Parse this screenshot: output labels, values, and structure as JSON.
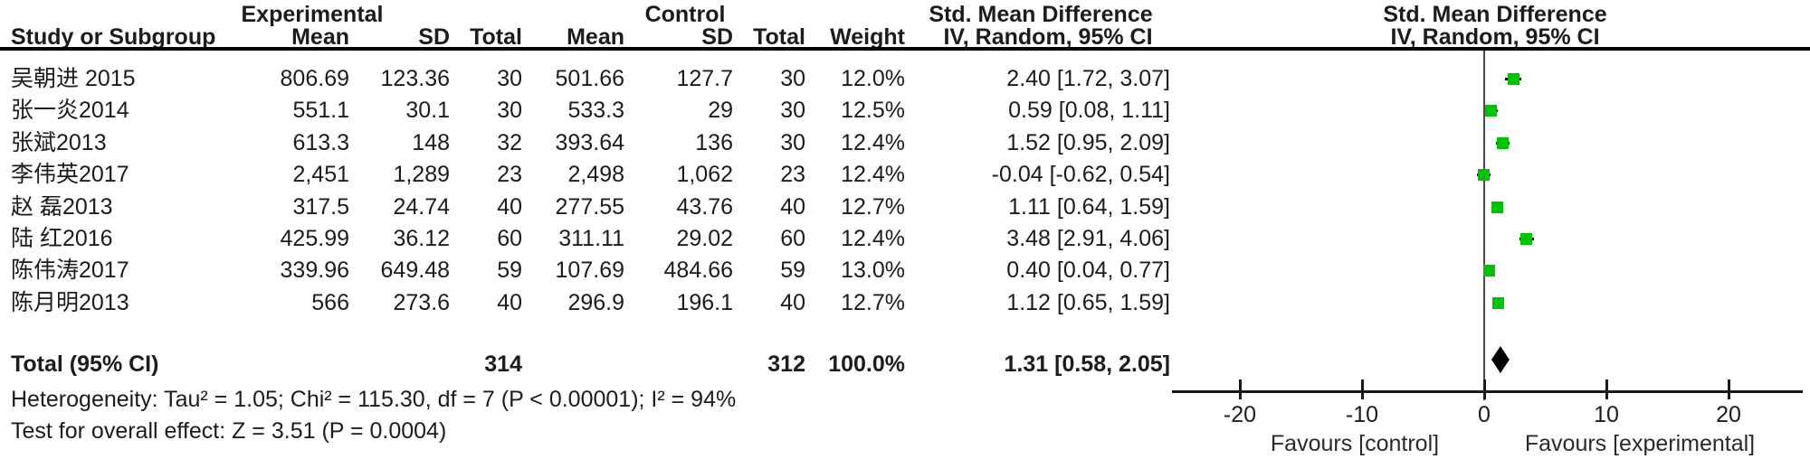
{
  "headers": {
    "group_experimental": "Experimental",
    "group_control": "Control",
    "smd_numeric": "Std. Mean Difference",
    "smd_plot": "Std. Mean Difference",
    "study": "Study or Subgroup",
    "mean": "Mean",
    "sd": "SD",
    "total": "Total",
    "weight": "Weight",
    "ci_method_numeric": "IV, Random, 95% CI",
    "ci_method_plot": "IV, Random, 95% CI"
  },
  "total": {
    "label": "Total (95% CI)",
    "exp_total": "314",
    "ctrl_total": "312",
    "weight": "100.0%",
    "ci_text": "1.31 [0.58, 2.05]",
    "smd": 1.31,
    "ci_lo": 0.58,
    "ci_hi": 2.05
  },
  "footer": {
    "heterogeneity": "Heterogeneity: Tau² = 1.05; Chi² = 115.30, df = 7 (P < 0.00001); I² = 94%",
    "overall_effect": "Test for overall effect: Z = 3.51 (P = 0.0004)"
  },
  "axis": {
    "ticks": [
      -20,
      -10,
      0,
      10,
      20
    ],
    "favours_left": "Favours [control]",
    "favours_right": "Favours [experimental]"
  },
  "colors": {
    "marker_green": "#00c300",
    "diamond_black": "#000000",
    "text": "#1c1c1c"
  },
  "chart_data": {
    "type": "scatter",
    "subtype": "forest-plot",
    "title": "Std. Mean Difference, IV, Random, 95% CI",
    "xlabel_left": "Favours [control]",
    "xlabel_right": "Favours [experimental]",
    "x_ticks": [
      -20,
      -10,
      0,
      10,
      20
    ],
    "xlim": [
      -25.5,
      26
    ],
    "studies": [
      {
        "name": "吴朝进 2015",
        "exp_mean": "806.69",
        "exp_sd": "123.36",
        "exp_total": "30",
        "ctrl_mean": "501.66",
        "ctrl_sd": "127.7",
        "ctrl_total": "30",
        "weight": "12.0%",
        "ci_text": "2.40 [1.72, 3.07]",
        "smd": 2.4,
        "ci_lo": 1.72,
        "ci_hi": 3.07
      },
      {
        "name": "张一炎2014",
        "exp_mean": "551.1",
        "exp_sd": "30.1",
        "exp_total": "30",
        "ctrl_mean": "533.3",
        "ctrl_sd": "29",
        "ctrl_total": "30",
        "weight": "12.5%",
        "ci_text": "0.59 [0.08, 1.11]",
        "smd": 0.59,
        "ci_lo": 0.08,
        "ci_hi": 1.11
      },
      {
        "name": "张斌2013",
        "exp_mean": "613.3",
        "exp_sd": "148",
        "exp_total": "32",
        "ctrl_mean": "393.64",
        "ctrl_sd": "136",
        "ctrl_total": "30",
        "weight": "12.4%",
        "ci_text": "1.52 [0.95, 2.09]",
        "smd": 1.52,
        "ci_lo": 0.95,
        "ci_hi": 2.09
      },
      {
        "name": "李伟英2017",
        "exp_mean": "2,451",
        "exp_sd": "1,289",
        "exp_total": "23",
        "ctrl_mean": "2,498",
        "ctrl_sd": "1,062",
        "ctrl_total": "23",
        "weight": "12.4%",
        "ci_text": "-0.04 [-0.62, 0.54]",
        "smd": -0.04,
        "ci_lo": -0.62,
        "ci_hi": 0.54
      },
      {
        "name": "赵 磊2013",
        "exp_mean": "317.5",
        "exp_sd": "24.74",
        "exp_total": "40",
        "ctrl_mean": "277.55",
        "ctrl_sd": "43.76",
        "ctrl_total": "40",
        "weight": "12.7%",
        "ci_text": "1.11 [0.64, 1.59]",
        "smd": 1.11,
        "ci_lo": 0.64,
        "ci_hi": 1.59
      },
      {
        "name": "陆 红2016",
        "exp_mean": "425.99",
        "exp_sd": "36.12",
        "exp_total": "60",
        "ctrl_mean": "311.11",
        "ctrl_sd": "29.02",
        "ctrl_total": "60",
        "weight": "12.4%",
        "ci_text": "3.48 [2.91, 4.06]",
        "smd": 3.48,
        "ci_lo": 2.91,
        "ci_hi": 4.06
      },
      {
        "name": "陈伟涛2017",
        "exp_mean": "339.96",
        "exp_sd": "649.48",
        "exp_total": "59",
        "ctrl_mean": "107.69",
        "ctrl_sd": "484.66",
        "ctrl_total": "59",
        "weight": "13.0%",
        "ci_text": "0.40 [0.04, 0.77]",
        "smd": 0.4,
        "ci_lo": 0.04,
        "ci_hi": 0.77
      },
      {
        "name": "陈月明2013",
        "exp_mean": "566",
        "exp_sd": "273.6",
        "exp_total": "40",
        "ctrl_mean": "296.9",
        "ctrl_sd": "196.1",
        "ctrl_total": "40",
        "weight": "12.7%",
        "ci_text": "1.12 [0.65, 1.59]",
        "smd": 1.12,
        "ci_lo": 0.65,
        "ci_hi": 1.59
      }
    ],
    "total": {
      "label": "Total (95% CI)",
      "exp_total": 314,
      "ctrl_total": 312,
      "weight": "100.0%",
      "smd": 1.31,
      "ci_lo": 0.58,
      "ci_hi": 2.05
    },
    "heterogeneity": {
      "tau2": 1.05,
      "chi2": 115.3,
      "df": 7,
      "p": "< 0.00001",
      "i2": "94%"
    },
    "overall_effect": {
      "z": 3.51,
      "p": "0.0004"
    }
  }
}
